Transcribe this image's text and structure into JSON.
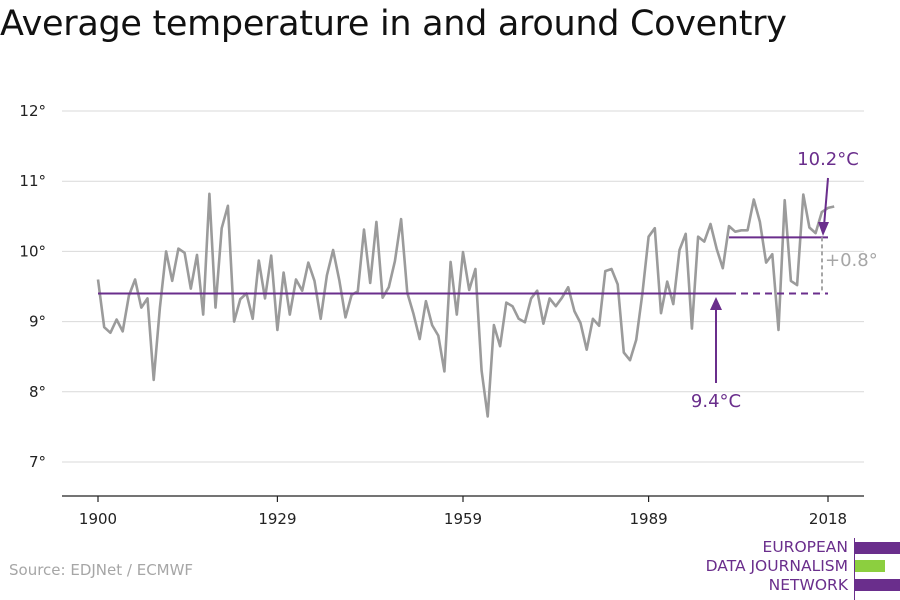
{
  "title": "Average temperature in and around Coventry",
  "source": "Source: EDJNet / ECMWF",
  "logo": {
    "lines": [
      "EUROPEAN",
      "DATA JOURNALISM",
      "NETWORK"
    ],
    "colors": {
      "purple": "#6a2e8c",
      "green": "#8ccf3f"
    }
  },
  "colors": {
    "series": "#9b9b9b",
    "baseline": "#6a2e8c",
    "diff": "#a6a6a6",
    "grid": "#d9d9d9",
    "axis": "#222222"
  },
  "annotations": {
    "recent": "10.2°C",
    "baseline": "9.4°C",
    "difference": "+0.8°"
  },
  "chart_data": {
    "type": "line",
    "title": "Average temperature in and around Coventry",
    "ylim": [
      7,
      12
    ],
    "xlim": [
      1900,
      2018
    ],
    "x_ticks": [
      1900,
      1929,
      1959,
      1989,
      2018
    ],
    "x_tick_labels": [
      "1900",
      "1929",
      "1959",
      "1989",
      "2018"
    ],
    "y_ticks": [
      7,
      8,
      9,
      10,
      11,
      12
    ],
    "y_tick_labels": [
      "7°",
      "8°",
      "9°",
      "10°",
      "11°",
      "12°"
    ],
    "grid": true,
    "x": [
      1900,
      1901,
      1902,
      1903,
      1904,
      1905,
      1906,
      1907,
      1908,
      1909,
      1910,
      1911,
      1912,
      1913,
      1914,
      1915,
      1916,
      1917,
      1918,
      1919,
      1920,
      1921,
      1922,
      1923,
      1924,
      1925,
      1926,
      1927,
      1928,
      1929,
      1930,
      1931,
      1932,
      1933,
      1934,
      1935,
      1936,
      1937,
      1938,
      1939,
      1940,
      1941,
      1942,
      1943,
      1944,
      1945,
      1946,
      1947,
      1948,
      1949,
      1950,
      1951,
      1952,
      1953,
      1954,
      1955,
      1956,
      1957,
      1958,
      1959,
      1960,
      1961,
      1962,
      1963,
      1964,
      1965,
      1966,
      1967,
      1968,
      1969,
      1970,
      1971,
      1972,
      1973,
      1974,
      1975,
      1976,
      1977,
      1978,
      1979,
      1980,
      1981,
      1982,
      1983,
      1984,
      1985,
      1986,
      1987,
      1988,
      1989,
      1990,
      1991,
      1992,
      1993,
      1994,
      1995,
      1996,
      1997,
      1998,
      1999,
      2000,
      2001,
      2002,
      2003,
      2004,
      2005,
      2006,
      2007,
      2008,
      2009,
      2010,
      2011,
      2012,
      2013,
      2014,
      2015,
      2016,
      2017,
      2018,
      2019
    ],
    "values": [
      9.6,
      8.92,
      8.84,
      9.03,
      8.86,
      9.37,
      9.6,
      9.2,
      9.33,
      8.17,
      9.2,
      10.0,
      9.58,
      10.04,
      9.98,
      9.47,
      9.95,
      9.1,
      10.82,
      9.2,
      10.33,
      10.65,
      9.0,
      9.32,
      9.4,
      9.04,
      9.87,
      9.33,
      9.94,
      8.88,
      9.7,
      9.1,
      9.6,
      9.44,
      9.84,
      9.58,
      9.04,
      9.66,
      10.02,
      9.59,
      9.06,
      9.38,
      9.43,
      10.31,
      9.55,
      10.42,
      9.34,
      9.49,
      9.86,
      10.46,
      9.41,
      9.11,
      8.75,
      9.29,
      8.95,
      8.8,
      8.29,
      9.85,
      9.1,
      9.99,
      9.45,
      9.75,
      8.3,
      7.65,
      8.95,
      8.65,
      9.27,
      9.22,
      9.04,
      8.99,
      9.33,
      9.44,
      8.97,
      9.33,
      9.22,
      9.34,
      9.49,
      9.15,
      8.98,
      8.6,
      9.04,
      8.94,
      9.72,
      9.75,
      9.53,
      8.56,
      8.45,
      8.74,
      9.4,
      10.21,
      10.33,
      9.12,
      9.57,
      9.25,
      10.02,
      10.25,
      8.9,
      10.21,
      10.14,
      10.39,
      10.04,
      9.76,
      10.36,
      10.28,
      10.3,
      10.3,
      10.74,
      10.42,
      9.84,
      9.96,
      8.88,
      10.73,
      9.58,
      9.52,
      10.81,
      10.34,
      10.26,
      10.56,
      10.62,
      10.64
    ],
    "baseline": {
      "value": 9.4,
      "x_start": 1900,
      "x_solid_end": 2002,
      "x_end": 2018
    },
    "recent": {
      "value": 10.2,
      "x_start": 2002,
      "x_end": 2018
    }
  }
}
